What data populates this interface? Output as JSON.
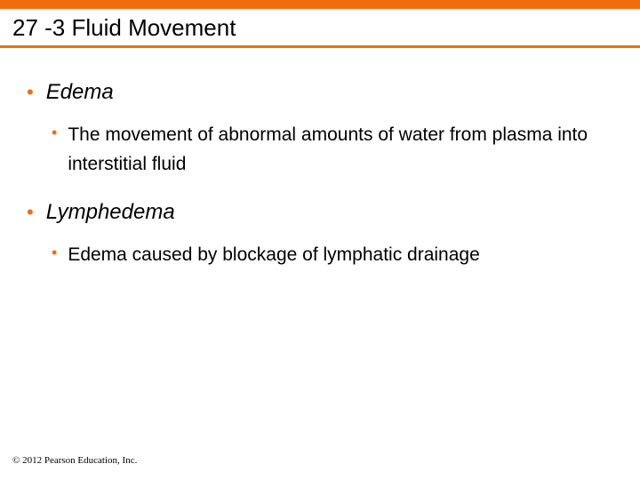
{
  "colors": {
    "accent": "#f26c0d",
    "bullet_l1": "#f26c0d",
    "bullet_l2": "#f26c0d",
    "text": "#000000",
    "background": "#ffffff"
  },
  "title": "27 -3 Fluid Movement",
  "items": [
    {
      "term": "Edema",
      "detail": "The movement of abnormal amounts of water from plasma into interstitial fluid"
    },
    {
      "term": "Lymphedema",
      "detail": "Edema caused by blockage of lymphatic drainage"
    }
  ],
  "footer": "© 2012 Pearson Education, Inc."
}
